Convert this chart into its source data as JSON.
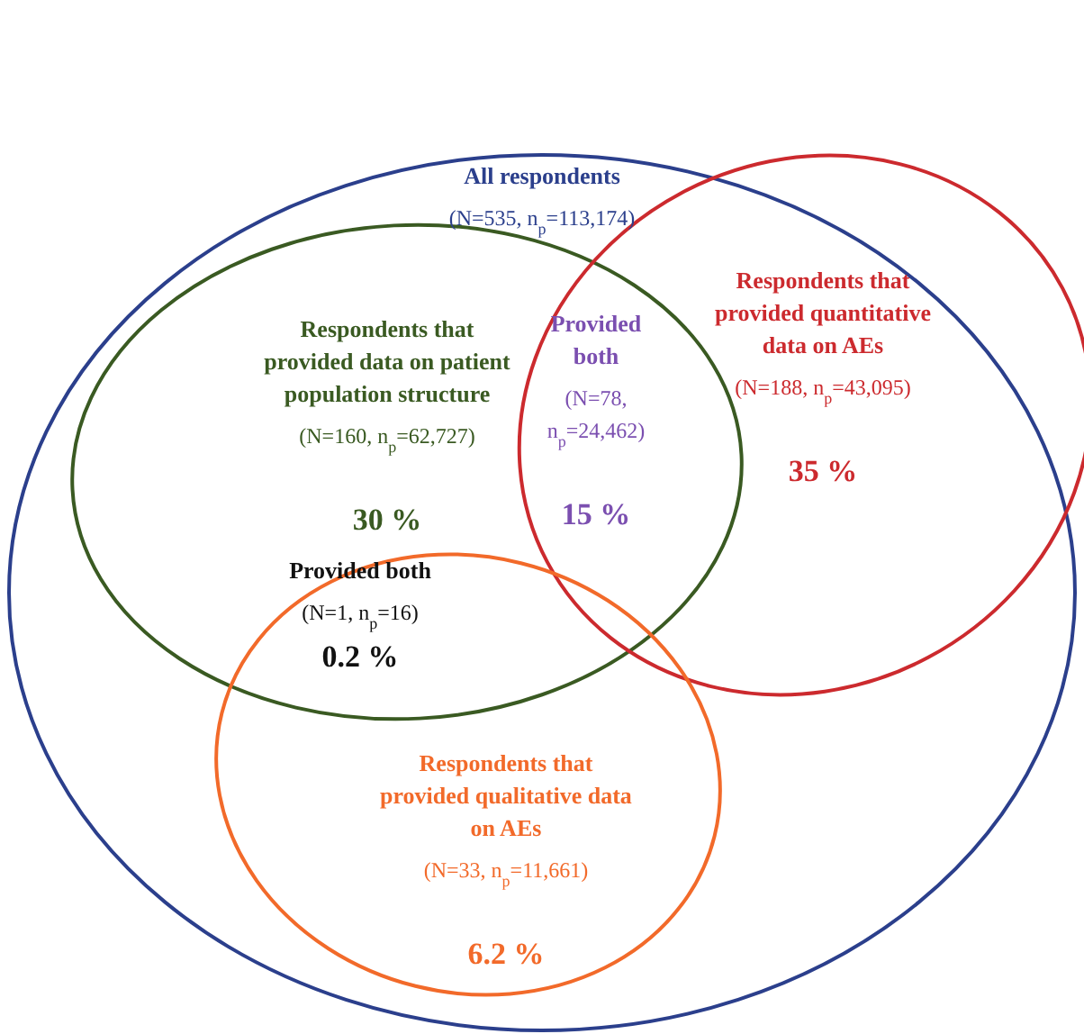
{
  "chart_data": {
    "type": "other",
    "categories": [
      "All respondents",
      "Respondents that provided data on patient population structure",
      "Provided both",
      "Respondents that provided quantitative data on AEs",
      "Provided both",
      "Respondents that provided qualitative data on AEs"
    ],
    "values": [
      null,
      30,
      15,
      35,
      0.2,
      6.2
    ],
    "value_labels": [
      null,
      "30 %",
      "15 %",
      "35 %",
      "0.2 %",
      "6.2 %"
    ],
    "colors": [
      "#2b3f8c",
      "#3a5a22",
      "#7b4fb0",
      "#cc2a2e",
      "#111111",
      "#f26a2a"
    ],
    "annotations": [
      "(N=535, n$_{p}$=113,174)",
      "(N=160, n$_{p}$=62,727)",
      "(N=78, n$_{p}$=24,462)",
      "(N=188, n$_{p}$=43,095)",
      "(N=1, n$_{p}$=16)",
      "(N=33, n$_{p}$=11,661)"
    ]
  }
}
